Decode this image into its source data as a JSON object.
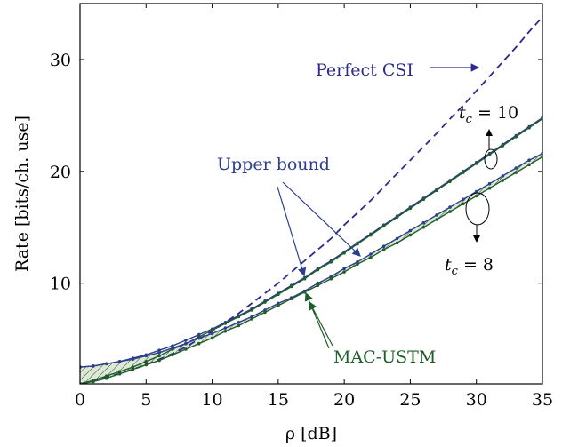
{
  "chart_data": {
    "type": "line",
    "xlabel": "ρ [dB]",
    "ylabel": "Rate [bits/ch. use]",
    "xlim": [
      0,
      35
    ],
    "ylim": [
      1,
      35
    ],
    "xticks": [
      0,
      5,
      10,
      15,
      20,
      25,
      30,
      35
    ],
    "yticks": [
      10,
      20,
      30
    ],
    "grid": false,
    "x": [
      0,
      1,
      2,
      3,
      4,
      5,
      6,
      7,
      8,
      9,
      10,
      11,
      12,
      13,
      14,
      15,
      16,
      17,
      18,
      19,
      20,
      21,
      22,
      23,
      24,
      25,
      26,
      27,
      28,
      29,
      30,
      31,
      32,
      33,
      34,
      35
    ],
    "series": [
      {
        "name": "Perfect CSI",
        "style": "dashed",
        "color": "#2e2a8c",
        "values": [
          1.0,
          1.3,
          1.6,
          1.9,
          2.3,
          2.7,
          3.2,
          3.7,
          4.3,
          5.0,
          5.7,
          6.5,
          7.3,
          8.2,
          9.1,
          10.0,
          11.0,
          12.0,
          13.0,
          14.0,
          15.2,
          16.3,
          17.4,
          18.6,
          19.8,
          21.0,
          22.2,
          23.4,
          24.7,
          25.9,
          27.2,
          28.5,
          29.8,
          31.1,
          32.5,
          33.8
        ]
      },
      {
        "name": "Upper bound",
        "tc": "10",
        "style": "solid-marker",
        "color": "#2c3e8c",
        "values": [
          2.5,
          2.6,
          2.8,
          3.0,
          3.3,
          3.6,
          4.0,
          4.4,
          4.9,
          5.4,
          5.9,
          6.5,
          7.1,
          7.7,
          8.4,
          9.1,
          9.8,
          10.5,
          11.3,
          12.0,
          12.8,
          13.6,
          14.4,
          15.2,
          16.0,
          16.8,
          17.6,
          18.4,
          19.2,
          20.0,
          20.8,
          21.6,
          22.4,
          23.2,
          24.0,
          24.8
        ]
      },
      {
        "name": "MAC-USTM",
        "tc": "10",
        "style": "solid-marker",
        "color": "#1f5e2a",
        "values": [
          1.0,
          1.3,
          1.7,
          2.1,
          2.5,
          3.0,
          3.5,
          4.1,
          4.6,
          5.2,
          5.8,
          6.4,
          7.0,
          7.6,
          8.3,
          9.0,
          9.7,
          10.4,
          11.2,
          11.9,
          12.7,
          13.5,
          14.3,
          15.1,
          15.9,
          16.7,
          17.5,
          18.3,
          19.1,
          19.9,
          20.7,
          21.5,
          22.3,
          23.1,
          23.9,
          24.7
        ]
      },
      {
        "name": "Upper bound",
        "tc": "8",
        "style": "solid-marker",
        "color": "#2c3e8c",
        "values": [
          2.5,
          2.6,
          2.8,
          3.0,
          3.2,
          3.5,
          3.8,
          4.2,
          4.6,
          5.1,
          5.5,
          6.0,
          6.5,
          7.0,
          7.6,
          8.2,
          8.7,
          9.3,
          10.0,
          10.6,
          11.3,
          11.9,
          12.6,
          13.3,
          14.0,
          14.7,
          15.4,
          16.1,
          16.8,
          17.5,
          18.2,
          18.9,
          19.6,
          20.3,
          21.0,
          21.6
        ]
      },
      {
        "name": "MAC-USTM",
        "tc": "8",
        "style": "solid-marker",
        "color": "#1f5e2a",
        "values": [
          1.0,
          1.2,
          1.5,
          1.9,
          2.3,
          2.7,
          3.1,
          3.6,
          4.1,
          4.6,
          5.1,
          5.7,
          6.2,
          6.8,
          7.4,
          8.0,
          8.6,
          9.2,
          9.8,
          10.4,
          11.0,
          11.7,
          12.3,
          13.0,
          13.6,
          14.3,
          15.0,
          15.7,
          16.4,
          17.1,
          17.8,
          18.5,
          19.2,
          19.9,
          20.6,
          21.3
        ]
      }
    ],
    "annotations": [
      {
        "text": "Perfect CSI",
        "color": "#2e2a8c"
      },
      {
        "text": "Upper bound",
        "color": "#2c3e8c"
      },
      {
        "text": "MAC-USTM",
        "color": "#1f5e2a"
      },
      {
        "text": "t",
        "sub": "c",
        "eq": " = 10"
      },
      {
        "text": "t",
        "sub": "c",
        "eq": " = 8"
      }
    ]
  }
}
